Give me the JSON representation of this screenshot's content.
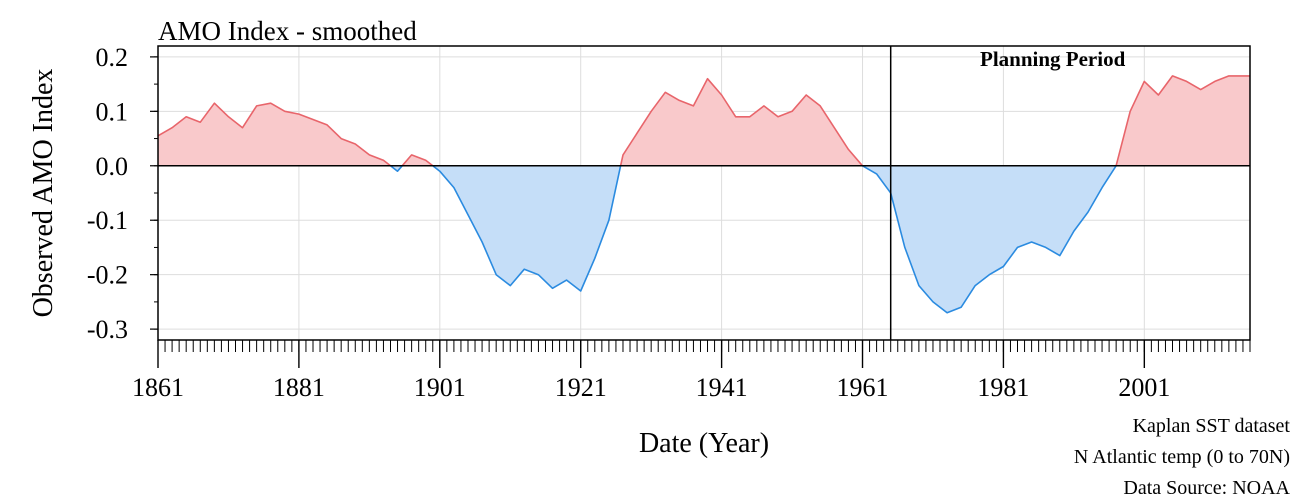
{
  "chart_data": {
    "type": "area",
    "title": "AMO Index - smoothed",
    "xlabel": "Date (Year)",
    "ylabel": "Observed AMO Index",
    "xlim": [
      1861,
      2016
    ],
    "ylim": [
      -0.32,
      0.22
    ],
    "x_ticks": [
      1861,
      1881,
      1901,
      1921,
      1941,
      1961,
      1981,
      2001
    ],
    "x_tick_labels": [
      "1861",
      "1881",
      "1901",
      "1921",
      "1941",
      "1961",
      "1981",
      "2001"
    ],
    "y_ticks": [
      -0.3,
      -0.2,
      -0.1,
      0.0,
      0.1,
      0.2
    ],
    "y_tick_labels": [
      "-0.3",
      "-0.2",
      "-0.1",
      "0.0",
      "0.1",
      "0.2"
    ],
    "grid": true,
    "baseline": 0.0,
    "planning_period": {
      "start": 1965,
      "label": "Planning Period"
    },
    "series": [
      {
        "x": [
          1861,
          1863,
          1865,
          1867,
          1869,
          1871,
          1873,
          1875,
          1877,
          1879,
          1881,
          1883,
          1885,
          1887,
          1889,
          1891,
          1893,
          1895,
          1897,
          1899,
          1901,
          1903,
          1905,
          1907,
          1909,
          1911,
          1913,
          1915,
          1917,
          1919,
          1921,
          1923,
          1925,
          1927,
          1929,
          1931,
          1933,
          1935,
          1937,
          1939,
          1941,
          1943,
          1945,
          1947,
          1949,
          1951,
          1953,
          1955,
          1957,
          1959,
          1961,
          1963,
          1965,
          1967,
          1969,
          1971,
          1973,
          1975,
          1977,
          1979,
          1981,
          1983,
          1985,
          1987,
          1989,
          1991,
          1993,
          1995,
          1997,
          1999,
          2001,
          2003,
          2005,
          2007,
          2009,
          2011,
          2013,
          2015,
          2016
        ],
        "y": [
          0.055,
          0.07,
          0.09,
          0.08,
          0.115,
          0.09,
          0.07,
          0.11,
          0.115,
          0.1,
          0.095,
          0.085,
          0.075,
          0.05,
          0.04,
          0.02,
          0.01,
          -0.01,
          0.02,
          0.01,
          -0.01,
          -0.04,
          -0.09,
          -0.14,
          -0.2,
          -0.22,
          -0.19,
          -0.2,
          -0.225,
          -0.21,
          -0.23,
          -0.17,
          -0.1,
          0.02,
          0.06,
          0.1,
          0.135,
          0.12,
          0.11,
          0.16,
          0.13,
          0.09,
          0.09,
          0.11,
          0.09,
          0.1,
          0.13,
          0.11,
          0.07,
          0.03,
          0.0,
          -0.015,
          -0.05,
          -0.15,
          -0.22,
          -0.25,
          -0.27,
          -0.26,
          -0.22,
          -0.2,
          -0.185,
          -0.15,
          -0.14,
          -0.15,
          -0.165,
          -0.12,
          -0.085,
          -0.04,
          0.0,
          0.1,
          0.155,
          0.13,
          0.165,
          0.155,
          0.14,
          0.155,
          0.165,
          0.165,
          0.165
        ],
        "positive_color": "#e8656b",
        "positive_fill": "#f9c9cb",
        "negative_color": "#2b8be0",
        "negative_fill": "#c5def8"
      }
    ],
    "annotations": [
      "Kaplan SST dataset",
      "N Atlantic temp (0 to 70N)",
      "Data Source: NOAA"
    ]
  }
}
